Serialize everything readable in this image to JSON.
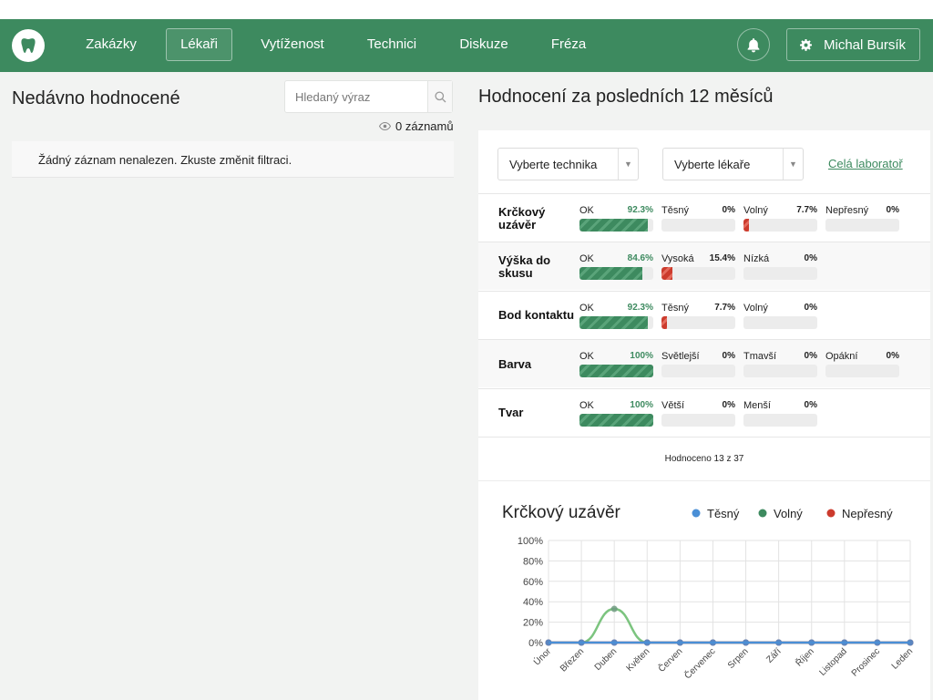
{
  "nav": {
    "items": [
      {
        "label": "Zakázky",
        "active": false
      },
      {
        "label": "Lékaři",
        "active": true
      },
      {
        "label": "Vytíženost",
        "active": false
      },
      {
        "label": "Technici",
        "active": false
      },
      {
        "label": "Diskuze",
        "active": false
      },
      {
        "label": "Fréza",
        "active": false
      }
    ],
    "user_name": "Michal Bursík",
    "logo_icon": "tooth-icon",
    "bell_icon": "bell-icon",
    "gear_icon": "gear-icon"
  },
  "recent": {
    "title": "Nedávno hodnocené",
    "search_placeholder": "Hledaný výraz",
    "records": "0 záznamů",
    "empty_message": "Žádný záznam nenalezen. Zkuste změnit filtraci."
  },
  "ratings": {
    "title": "Hodnocení za posledních 12 měsíců",
    "technician_select": "Vyberte technika",
    "doctor_select": "Vyberte lékaře",
    "lab_link": "Celá laboratoř",
    "rows": [
      {
        "label": "Krčkový uzávěr",
        "stats": [
          {
            "name": "OK",
            "pct": "92.3%",
            "value": 92.3,
            "kind": "ok"
          },
          {
            "name": "Těsný",
            "pct": "0%",
            "value": 0,
            "kind": "bad"
          },
          {
            "name": "Volný",
            "pct": "7.7%",
            "value": 7.7,
            "kind": "bad"
          },
          {
            "name": "Nepřesný",
            "pct": "0%",
            "value": 0,
            "kind": "bad"
          }
        ]
      },
      {
        "label": "Výška do skusu",
        "stats": [
          {
            "name": "OK",
            "pct": "84.6%",
            "value": 84.6,
            "kind": "ok"
          },
          {
            "name": "Vysoká",
            "pct": "15.4%",
            "value": 15.4,
            "kind": "bad"
          },
          {
            "name": "Nízká",
            "pct": "0%",
            "value": 0,
            "kind": "bad"
          }
        ]
      },
      {
        "label": "Bod kontaktu",
        "stats": [
          {
            "name": "OK",
            "pct": "92.3%",
            "value": 92.3,
            "kind": "ok"
          },
          {
            "name": "Těsný",
            "pct": "7.7%",
            "value": 7.7,
            "kind": "bad"
          },
          {
            "name": "Volný",
            "pct": "0%",
            "value": 0,
            "kind": "bad"
          }
        ]
      },
      {
        "label": "Barva",
        "stats": [
          {
            "name": "OK",
            "pct": "100%",
            "value": 100,
            "kind": "ok"
          },
          {
            "name": "Světlejší",
            "pct": "0%",
            "value": 0,
            "kind": "bad"
          },
          {
            "name": "Tmavší",
            "pct": "0%",
            "value": 0,
            "kind": "bad"
          },
          {
            "name": "Opákní",
            "pct": "0%",
            "value": 0,
            "kind": "bad"
          }
        ]
      },
      {
        "label": "Tvar",
        "stats": [
          {
            "name": "OK",
            "pct": "100%",
            "value": 100,
            "kind": "ok"
          },
          {
            "name": "Větší",
            "pct": "0%",
            "value": 0,
            "kind": "bad"
          },
          {
            "name": "Menší",
            "pct": "0%",
            "value": 0,
            "kind": "bad"
          }
        ]
      }
    ],
    "footer": "Hodnoceno 13 z 37"
  },
  "chart_data": {
    "type": "line",
    "title": "Krčkový uzávěr",
    "categories": [
      "Únor",
      "Březen",
      "Duben",
      "Květen",
      "Červen",
      "Červenec",
      "Srpen",
      "Září",
      "Říjen",
      "Listopad",
      "Prosinec",
      "Leden"
    ],
    "series": [
      {
        "name": "Těsný",
        "color": "#4a8fd6",
        "values": [
          0,
          0,
          0,
          0,
          0,
          0,
          0,
          0,
          0,
          0,
          0,
          0
        ]
      },
      {
        "name": "Volný",
        "color": "#3d8a5f",
        "values": [
          0,
          0,
          33,
          0,
          0,
          0,
          0,
          0,
          0,
          0,
          0,
          0
        ]
      },
      {
        "name": "Nepřesný",
        "color": "#cc3b2d",
        "values": [
          0,
          0,
          0,
          0,
          0,
          0,
          0,
          0,
          0,
          0,
          0,
          0
        ]
      }
    ],
    "y_ticks": [
      "0%",
      "20%",
      "40%",
      "60%",
      "80%",
      "100%"
    ],
    "ylim": [
      0,
      100
    ],
    "grid": true,
    "legend": "top-right"
  }
}
